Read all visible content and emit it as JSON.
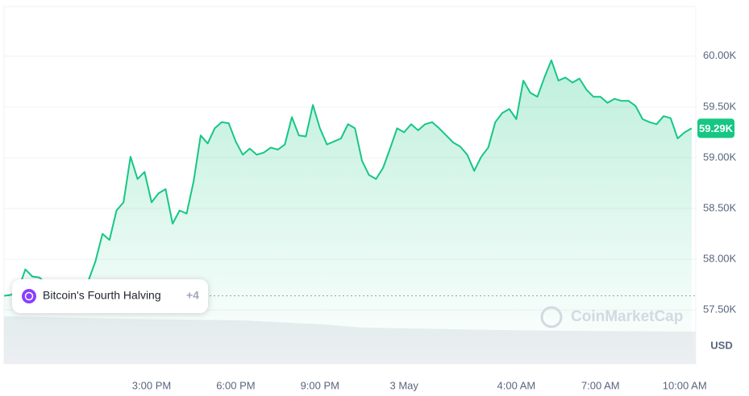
{
  "chart_data": {
    "type": "line",
    "color": "#16c784",
    "categories": [
      null,
      null,
      null,
      null,
      null,
      null,
      null,
      null,
      null,
      null,
      null,
      null,
      null,
      null,
      null,
      null,
      null,
      null,
      null,
      null,
      null,
      "3:00 PM",
      null,
      null,
      null,
      null,
      null,
      null,
      null,
      null,
      null,
      null,
      null,
      "6:00 PM",
      null,
      null,
      null,
      null,
      null,
      null,
      null,
      null,
      null,
      null,
      null,
      "9:00 PM",
      null,
      null,
      null,
      null,
      null,
      null,
      null,
      null,
      null,
      null,
      null,
      "3 May",
      null,
      null,
      null,
      null,
      null,
      null,
      null,
      null,
      null,
      null,
      null,
      null,
      null,
      null,
      null,
      "4:00 AM",
      null,
      null,
      null,
      null,
      null,
      null,
      null,
      null,
      null,
      null,
      null,
      "7:00 AM",
      null,
      null,
      null,
      null,
      null,
      null,
      null,
      null,
      null,
      null,
      null,
      "10:00 AM",
      null
    ],
    "values": [
      57640,
      57650,
      57700,
      57900,
      57830,
      57820,
      57760,
      57740,
      57740,
      57730,
      57750,
      57730,
      57790,
      57980,
      58250,
      58190,
      58480,
      58560,
      59010,
      58790,
      58860,
      58560,
      58650,
      58690,
      58350,
      58480,
      58450,
      58770,
      59220,
      59140,
      59290,
      59350,
      59340,
      59160,
      59030,
      59090,
      59030,
      59050,
      59100,
      59080,
      59130,
      59400,
      59220,
      59210,
      59520,
      59290,
      59130,
      59160,
      59190,
      59330,
      59290,
      58970,
      58830,
      58790,
      58900,
      59090,
      59290,
      59250,
      59330,
      59270,
      59330,
      59350,
      59290,
      59220,
      59150,
      59110,
      59030,
      58870,
      59010,
      59100,
      59350,
      59440,
      59480,
      59380,
      59760,
      59640,
      59600,
      59790,
      59960,
      59760,
      59790,
      59740,
      59780,
      59670,
      59600,
      59600,
      59540,
      59580,
      59560,
      59560,
      59510,
      59380,
      59350,
      59330,
      59410,
      59390,
      59190,
      59250,
      59290
    ],
    "ylim": [
      56970,
      60490
    ],
    "yticks": [
      {
        "value": 60000,
        "label": "60.00K"
      },
      {
        "value": 59500,
        "label": "59.50K"
      },
      {
        "value": 59000,
        "label": "59.00K"
      },
      {
        "value": 58500,
        "label": "58.50K"
      },
      {
        "value": 58000,
        "label": "58.00K"
      },
      {
        "value": 57500,
        "label": "57.50K"
      }
    ],
    "grid": true,
    "current_price": {
      "value": 59290,
      "label": "59.29K"
    },
    "reference_line": 57640,
    "currency": "USD",
    "event": {
      "label": "Bitcoin's Fourth Halving",
      "more": "+4"
    },
    "watermark": "CoinMarketCap"
  }
}
